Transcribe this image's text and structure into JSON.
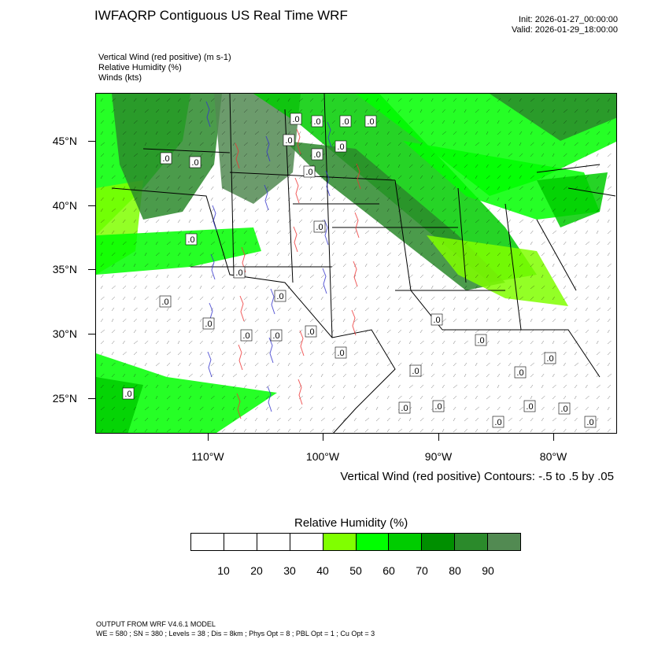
{
  "header": {
    "title": "IWFAQRP Contiguous US Real Time WRF",
    "init": "Init: 2026-01-27_00:00:00",
    "valid": "Valid: 2026-01-29_18:00:00"
  },
  "fields": [
    "Vertical Wind (red positive)   (m s-1)",
    "Relative Humidity   (%)",
    "Winds   (kts)"
  ],
  "map": {
    "lat_labels": [
      "45°N",
      "40°N",
      "35°N",
      "30°N",
      "25°N"
    ],
    "lon_labels": [
      "110°W",
      "100°W",
      "90°W",
      "80°W"
    ],
    "contour_markers": [
      ".0",
      ".0",
      ".0",
      ".0",
      ".0",
      ".0",
      ".0",
      ".0",
      ".0",
      ".0",
      ".0",
      ".0",
      ".0",
      ".0",
      ".0",
      ".0",
      ".0",
      ".0",
      ".0",
      ".0",
      ".0",
      ".0",
      ".0",
      ".0",
      ".0",
      ".0",
      ".0",
      ".0",
      ".0",
      ".0",
      ".0",
      ".0"
    ],
    "contour_note": "Vertical Wind (red positive) Contours: -.5 to .5 by .05"
  },
  "legend": {
    "title": "Relative Humidity   (%)",
    "colors": [
      "#ffffff",
      "#ffffff",
      "#ffffff",
      "#ffffff",
      "#80ff00",
      "#00ff00",
      "#00cc00",
      "#008f00",
      "#2b8a2b",
      "#528a52"
    ],
    "ticks": [
      "10",
      "20",
      "30",
      "40",
      "50",
      "60",
      "70",
      "80",
      "90"
    ]
  },
  "footer": {
    "line1": "OUTPUT FROM WRF V4.6.1 MODEL",
    "line2": "WE = 580 ; SN = 380 ; Levels = 38 ; Dis = 8km ; Phys Opt = 8 ; PBL Opt = 1 ; Cu Opt = 3"
  }
}
